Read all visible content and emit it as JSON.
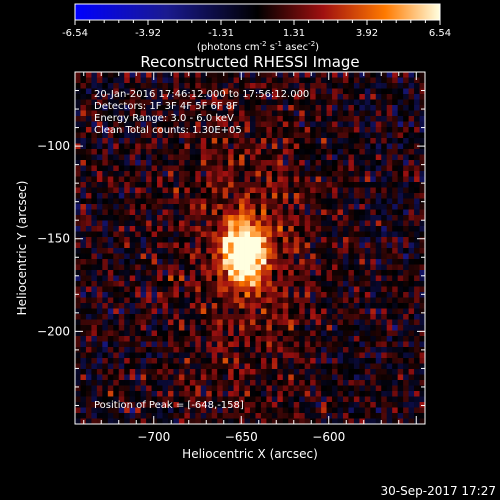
{
  "chart_data": {
    "type": "heatmap",
    "title": "Reconstructed RHESSI Image",
    "xlabel": "Heliocentric X (arcsec)",
    "ylabel": "Heliocentric Y (arcsec)",
    "x_ticks": [
      -700,
      -650,
      -600
    ],
    "y_ticks": [
      -100,
      -150,
      -200
    ],
    "xlim": [
      -745,
      -545
    ],
    "ylim": [
      -250,
      -60
    ],
    "colorbar": {
      "tick_labels": [
        "-6.54",
        "-3.92",
        "-1.31",
        "1.31",
        "3.92",
        "6.54"
      ],
      "range": [
        -6.54,
        6.54
      ],
      "unit_text": "(photons cm",
      "unit_sup1": "-2",
      "unit_mid": " s",
      "unit_sup2": "-1",
      "unit_mid2": " asec",
      "unit_sup3": "-2",
      "unit_end": ")"
    },
    "peak": {
      "x": -648,
      "y": -158,
      "value": 6.54
    },
    "annotations": [
      "20-Jan-2016 17:46:12.000 to 17:56:12.000",
      "Detectors: 1F 3F 4F 5F 6F 8F",
      "Energy Range: 3.0 - 6.0 keV",
      "Clean    Total counts: 1.30E+05",
      "Position of Peak = [-648,-158]"
    ]
  },
  "footer_date": "30-Sep-2017 17:27"
}
